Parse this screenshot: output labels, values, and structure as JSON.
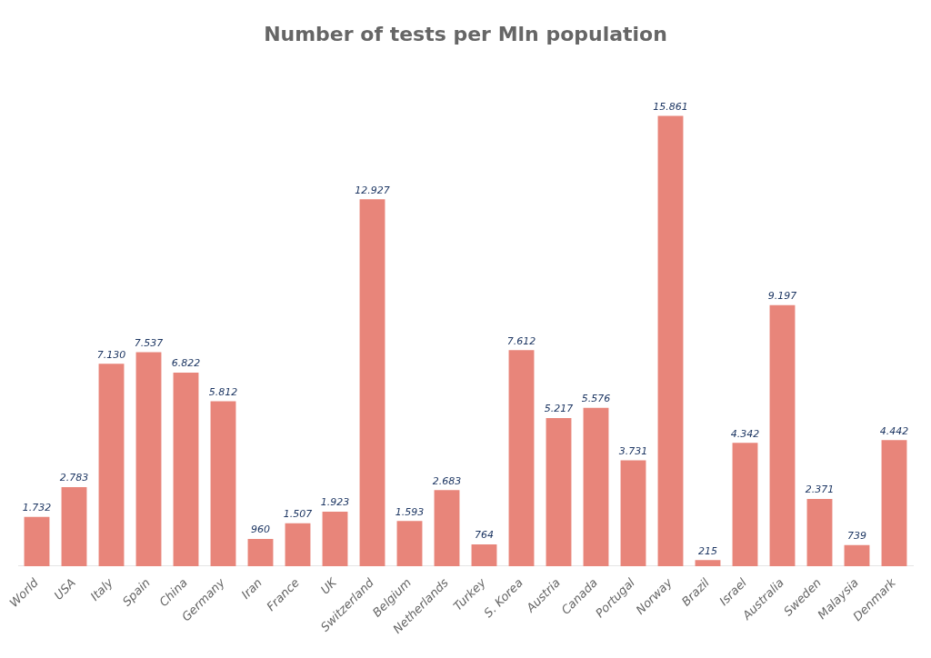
{
  "chart_data": {
    "type": "bar",
    "title": "Number of tests per Mln population",
    "categories": [
      "World",
      "USA",
      "Italy",
      "Spain",
      "China",
      "Germany",
      "Iran",
      "France",
      "UK",
      "Switzerland",
      "Belgium",
      "Netherlands",
      "Turkey",
      "S. Korea",
      "Austria",
      "Canada",
      "Portugal",
      "Norway",
      "Brazil",
      "Israel",
      "Australia",
      "Sweden",
      "Malaysia",
      "Denmark"
    ],
    "values": [
      1.732,
      2.783,
      7.13,
      7.537,
      6.822,
      5.812,
      0.96,
      1.507,
      1.923,
      12.927,
      1.593,
      2.683,
      0.764,
      7.612,
      5.217,
      5.576,
      3.731,
      15.861,
      0.215,
      4.342,
      9.197,
      2.371,
      0.739,
      4.442
    ],
    "value_labels": [
      "1.732",
      "2.783",
      "7.130",
      "7.537",
      "6.822",
      "5.812",
      "960",
      "1.507",
      "1.923",
      "12.927",
      "1.593",
      "2.683",
      "764",
      "7.612",
      "5.217",
      "5.576",
      "3.731",
      "15.861",
      "215",
      "4.342",
      "9.197",
      "2.371",
      "739",
      "4.442"
    ],
    "color": "#E8857A",
    "ylim": [
      0,
      17.5
    ],
    "grid": false,
    "data_labels": true,
    "tick_labels": "x"
  }
}
